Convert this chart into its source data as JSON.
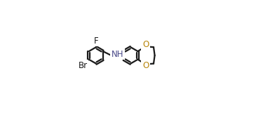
{
  "bg_color": "#ffffff",
  "bond_color": "#1a1a1a",
  "o_color": "#b8860b",
  "n_color": "#4a4a8a",
  "label_F": "F",
  "label_Br": "Br",
  "label_O1": "O",
  "label_O2": "O",
  "label_NH": "NH",
  "figw": 3.75,
  "figh": 1.61,
  "dpi": 100,
  "lw": 1.6,
  "r": 0.072
}
